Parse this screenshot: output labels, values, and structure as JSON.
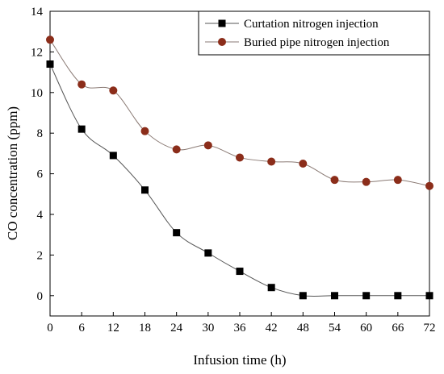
{
  "chart_data": {
    "type": "line",
    "xlabel": "Infusion time (h)",
    "ylabel": "CO concentration (ppm)",
    "x": [
      0,
      6,
      12,
      18,
      24,
      30,
      36,
      42,
      48,
      54,
      60,
      66,
      72
    ],
    "xlim": [
      0,
      72
    ],
    "ylim": [
      -1,
      14
    ],
    "xticks": [
      "0",
      "6",
      "12",
      "18",
      "24",
      "30",
      "36",
      "42",
      "48",
      "54",
      "60",
      "66",
      "72"
    ],
    "yticks": [
      "0",
      "2",
      "4",
      "6",
      "8",
      "10",
      "12",
      "14"
    ],
    "grid": false,
    "legend_position": "top-right",
    "series": [
      {
        "name": "Curtation nitrogen injection",
        "color": "#000000",
        "marker": "square",
        "values": [
          11.4,
          8.2,
          6.9,
          5.2,
          3.1,
          2.1,
          1.2,
          0.4,
          0.0,
          0.0,
          0.0,
          0.0,
          0.0
        ]
      },
      {
        "name": "Buried pipe nitrogen injection",
        "color": "#8B2D1A",
        "marker": "circle",
        "values": [
          12.6,
          10.4,
          10.1,
          8.1,
          7.2,
          7.4,
          6.8,
          6.6,
          6.5,
          5.7,
          5.6,
          5.7,
          5.4
        ]
      }
    ]
  }
}
